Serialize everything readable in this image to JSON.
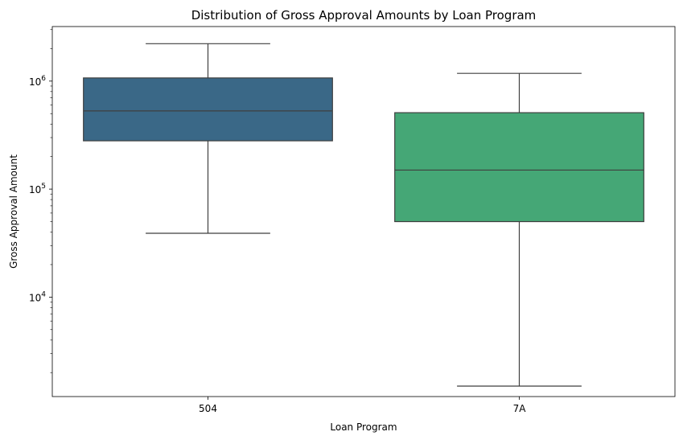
{
  "chart_data": {
    "type": "box",
    "title": "Distribution of Gross Approval Amounts by Loan Program",
    "xlabel": "Loan Program",
    "ylabel": "Gross Approval Amount",
    "yscale": "log",
    "ylim": [
      1200,
      3200000
    ],
    "y_major_ticks": [
      {
        "value": 10000,
        "base": "10",
        "exp": "4"
      },
      {
        "value": 100000,
        "base": "10",
        "exp": "5"
      },
      {
        "value": 1000000,
        "base": "10",
        "exp": "6"
      }
    ],
    "grid": false,
    "legend": "none",
    "categories": [
      "504",
      "7A"
    ],
    "boxes": [
      {
        "category": "504",
        "whisker_low": 39000,
        "q1": 280000,
        "median": 530000,
        "q3": 1070000,
        "whisker_high": 2220000,
        "color": "#3a6887"
      },
      {
        "category": "7A",
        "whisker_low": 1500,
        "q1": 50000,
        "median": 150000,
        "q3": 510000,
        "whisker_high": 1180000,
        "color": "#45a776"
      }
    ],
    "line_color": "#3f3f3f"
  }
}
